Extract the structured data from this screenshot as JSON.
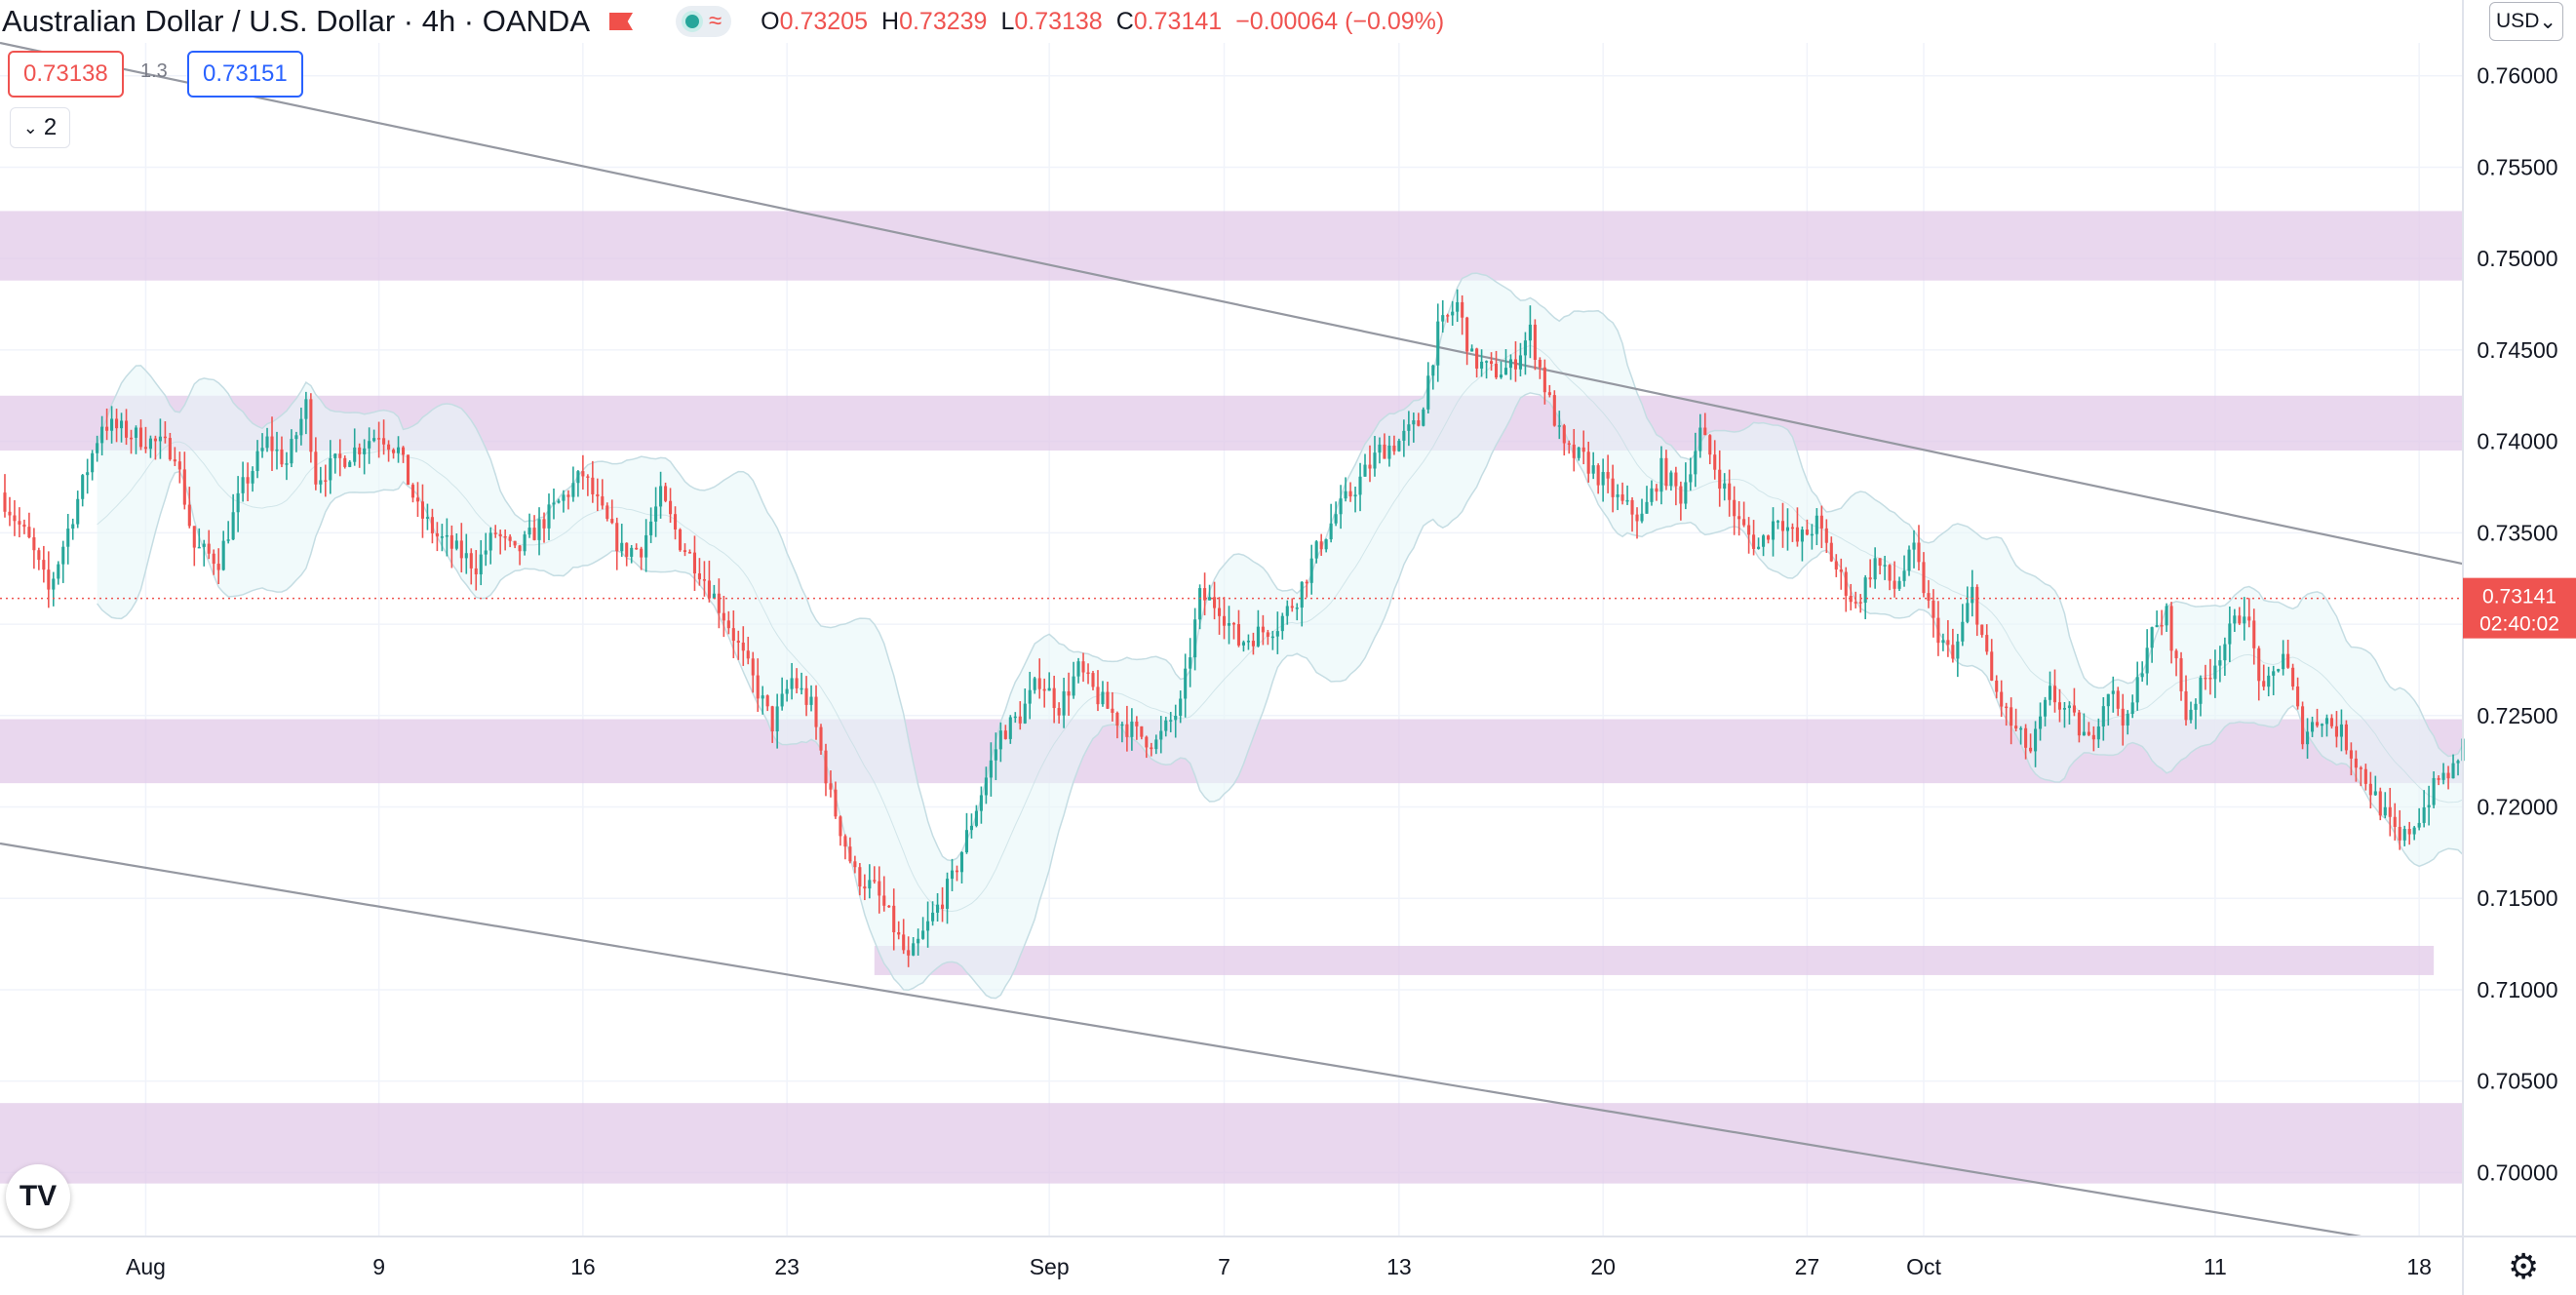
{
  "header": {
    "symbol_title": "Australian Dollar / U.S. Dollar",
    "interval": "4h",
    "exchange": "OANDA",
    "ohlc": {
      "open_label": "O",
      "open": "0.73205",
      "high_label": "H",
      "high": "0.73239",
      "low_label": "L",
      "low": "0.73138",
      "close_label": "C",
      "close": "0.73141",
      "change": "−0.00064 (−0.09%)"
    },
    "colors": {
      "flag": "#f0504a",
      "status_dot": "#26a69a",
      "negative": "#ef5350"
    },
    "icons": [
      "flag-icon",
      "status-dot-icon",
      "indicator-wave-icon"
    ]
  },
  "quote": {
    "sell": "0.73138",
    "spread": "1.3",
    "buy": "0.73151"
  },
  "layers_button": {
    "icon": "chevron-down-icon",
    "count": "2"
  },
  "currency_button": "USD",
  "price_badge": {
    "price": "0.73141",
    "countdown": "02:40:02",
    "color": "#ef5350"
  },
  "footer": {
    "logo": "TV",
    "logo_icon": "tradingview-logo-icon",
    "settings_icon": "gear-icon"
  },
  "chart_data": {
    "type": "candlestick",
    "timeframe": "4h",
    "y_ticks": [
      "0.76000",
      "0.75500",
      "0.75000",
      "0.74500",
      "0.74000",
      "0.73500",
      "0.73000",
      "0.72500",
      "0.72000",
      "0.71500",
      "0.71000",
      "0.70500",
      "0.70000"
    ],
    "x_ticks": [
      "Aug",
      "9",
      "16",
      "23",
      "Sep",
      "7",
      "13",
      "20",
      "27",
      "Oct",
      "11",
      "18"
    ],
    "ylim": [
      0.6965,
      0.7618
    ],
    "x_range": [
      "2021-07-27T00:00",
      "2021-10-19T12:00"
    ],
    "x_tick_dates": [
      "2021-08-01",
      "2021-08-09",
      "2021-08-16",
      "2021-08-23",
      "2021-09-01",
      "2021-09-07",
      "2021-09-13",
      "2021-09-20",
      "2021-09-27",
      "2021-10-01",
      "2021-10-11",
      "2021-10-18"
    ],
    "last_price": 0.73141,
    "colors": {
      "up": "#26a69a",
      "down": "#ef5350",
      "zone": "#e1c8e8",
      "channel": "#9598a1",
      "bands_fill": "#e8f6f8",
      "bands_line": "#c5dde3",
      "grid": "#f0f3fa"
    },
    "price_path": [
      [
        "2021-07-27T00:00",
        0.7372
      ],
      [
        "2021-07-28T00:00",
        0.7345
      ],
      [
        "2021-07-28T16:00",
        0.7318
      ],
      [
        "2021-07-29T12:00",
        0.736
      ],
      [
        "2021-07-30T12:00",
        0.741
      ],
      [
        "2021-08-02T00:00",
        0.7395
      ],
      [
        "2021-08-02T16:00",
        0.7342
      ],
      [
        "2021-08-03T12:00",
        0.7335
      ],
      [
        "2021-08-04T08:00",
        0.7375
      ],
      [
        "2021-08-05T04:00",
        0.74
      ],
      [
        "2021-08-05T20:00",
        0.7388
      ],
      [
        "2021-08-06T12:00",
        0.742
      ],
      [
        "2021-08-06T20:00",
        0.738
      ],
      [
        "2021-08-09T00:00",
        0.7405
      ],
      [
        "2021-08-09T16:00",
        0.7395
      ],
      [
        "2021-08-10T08:00",
        0.7362
      ],
      [
        "2021-08-11T00:00",
        0.7348
      ],
      [
        "2021-08-11T16:00",
        0.734
      ],
      [
        "2021-08-12T08:00",
        0.7332
      ],
      [
        "2021-08-13T00:00",
        0.735
      ],
      [
        "2021-08-13T16:00",
        0.7338
      ],
      [
        "2021-08-16T00:00",
        0.7382
      ],
      [
        "2021-08-16T16:00",
        0.736
      ],
      [
        "2021-08-17T08:00",
        0.734
      ],
      [
        "2021-08-18T00:00",
        0.7342
      ],
      [
        "2021-08-18T16:00",
        0.737
      ],
      [
        "2021-08-19T08:00",
        0.7345
      ],
      [
        "2021-08-20T00:00",
        0.733
      ],
      [
        "2021-08-21T00:00",
        0.73
      ],
      [
        "2021-08-22T12:00",
        0.7245
      ],
      [
        "2021-08-23T04:00",
        0.727
      ],
      [
        "2021-08-23T20:00",
        0.7255
      ],
      [
        "2021-08-24T12:00",
        0.7205
      ],
      [
        "2021-08-25T08:00",
        0.7163
      ],
      [
        "2021-08-26T00:00",
        0.7155
      ],
      [
        "2021-08-26T12:00",
        0.714
      ],
      [
        "2021-08-27T04:00",
        0.7115
      ],
      [
        "2021-08-27T20:00",
        0.7135
      ],
      [
        "2021-08-28T16:00",
        0.716
      ],
      [
        "2021-08-29T12:00",
        0.72
      ],
      [
        "2021-08-30T08:00",
        0.724
      ],
      [
        "2021-08-31T00:00",
        0.725
      ],
      [
        "2021-08-31T16:00",
        0.727
      ],
      [
        "2021-09-01T08:00",
        0.7255
      ],
      [
        "2021-09-02T00:00",
        0.7275
      ],
      [
        "2021-09-02T16:00",
        0.726
      ],
      [
        "2021-09-03T08:00",
        0.7248
      ],
      [
        "2021-09-04T00:00",
        0.724
      ],
      [
        "2021-09-04T16:00",
        0.7235
      ],
      [
        "2021-09-05T12:00",
        0.7255
      ],
      [
        "2021-09-06T04:00",
        0.7315
      ],
      [
        "2021-09-06T20:00",
        0.731
      ],
      [
        "2021-09-07T12:00",
        0.729
      ],
      [
        "2021-09-08T04:00",
        0.7295
      ],
      [
        "2021-09-08T20:00",
        0.73
      ],
      [
        "2021-09-09T12:00",
        0.7315
      ],
      [
        "2021-09-10T04:00",
        0.734
      ],
      [
        "2021-09-10T20:00",
        0.736
      ],
      [
        "2021-09-11T12:00",
        0.7375
      ],
      [
        "2021-09-12T08:00",
        0.7395
      ],
      [
        "2021-09-13T00:00",
        0.74
      ],
      [
        "2021-09-13T16:00",
        0.741
      ],
      [
        "2021-09-14T08:00",
        0.746
      ],
      [
        "2021-09-15T00:00",
        0.7475
      ],
      [
        "2021-09-15T12:00",
        0.7445
      ],
      [
        "2021-09-16T04:00",
        0.7438
      ],
      [
        "2021-09-16T20:00",
        0.744
      ],
      [
        "2021-09-17T12:00",
        0.746
      ],
      [
        "2021-09-18T00:00",
        0.743
      ],
      [
        "2021-09-18T16:00",
        0.7395
      ],
      [
        "2021-09-19T08:00",
        0.739
      ],
      [
        "2021-09-20T00:00",
        0.7378
      ],
      [
        "2021-09-20T16:00",
        0.7365
      ],
      [
        "2021-09-21T08:00",
        0.7358
      ],
      [
        "2021-09-22T00:00",
        0.7385
      ],
      [
        "2021-09-22T16:00",
        0.737
      ],
      [
        "2021-09-23T08:00",
        0.7405
      ],
      [
        "2021-09-24T00:00",
        0.738
      ],
      [
        "2021-09-24T16:00",
        0.7355
      ],
      [
        "2021-09-25T08:00",
        0.7342
      ],
      [
        "2021-09-26T00:00",
        0.736
      ],
      [
        "2021-09-26T16:00",
        0.7345
      ],
      [
        "2021-09-27T08:00",
        0.7355
      ],
      [
        "2021-09-28T00:00",
        0.733
      ],
      [
        "2021-09-28T16:00",
        0.731
      ],
      [
        "2021-09-29T08:00",
        0.7335
      ],
      [
        "2021-09-30T00:00",
        0.732
      ],
      [
        "2021-09-30T16:00",
        0.734
      ],
      [
        "2021-10-01T08:00",
        0.73
      ],
      [
        "2021-10-02T00:00",
        0.728
      ],
      [
        "2021-10-02T16:00",
        0.7318
      ],
      [
        "2021-10-03T08:00",
        0.7268
      ],
      [
        "2021-10-04T00:00",
        0.7245
      ],
      [
        "2021-10-04T16:00",
        0.723
      ],
      [
        "2021-10-05T08:00",
        0.7262
      ],
      [
        "2021-10-06T00:00",
        0.725
      ],
      [
        "2021-10-06T16:00",
        0.7235
      ],
      [
        "2021-10-07T08:00",
        0.7265
      ],
      [
        "2021-10-08T00:00",
        0.7245
      ],
      [
        "2021-10-08T16:00",
        0.729
      ],
      [
        "2021-10-09T08:00",
        0.7305
      ],
      [
        "2021-10-10T00:00",
        0.725
      ],
      [
        "2021-10-10T16:00",
        0.727
      ],
      [
        "2021-10-11T08:00",
        0.729
      ],
      [
        "2021-10-12T00:00",
        0.731
      ],
      [
        "2021-10-12T16:00",
        0.726
      ],
      [
        "2021-10-13T08:00",
        0.7285
      ],
      [
        "2021-10-14T00:00",
        0.724
      ],
      [
        "2021-10-14T16:00",
        0.725
      ],
      [
        "2021-10-15T08:00",
        0.724
      ],
      [
        "2021-10-16T00:00",
        0.722
      ],
      [
        "2021-10-16T16:00",
        0.72
      ],
      [
        "2021-10-17T08:00",
        0.718
      ],
      [
        "2021-10-18T00:00",
        0.7195
      ],
      [
        "2021-10-18T16:00",
        0.7215
      ],
      [
        "2021-10-19T08:00",
        0.7222
      ],
      [
        "2021-10-19T12:00",
        0.724
      ]
    ],
    "zones": [
      {
        "from": 0.7488,
        "to": 0.7526
      },
      {
        "from": 0.7395,
        "to": 0.7425
      },
      {
        "from": 0.7213,
        "to": 0.7248
      },
      {
        "from": 0.7108,
        "to": 0.7124,
        "x_start": "2021-08-26T00:00",
        "x_end": "2021-10-18T12:00"
      },
      {
        "from": 0.6994,
        "to": 0.7038
      }
    ],
    "trend_lines": [
      {
        "from": [
          "2021-07-27T00:00",
          0.7618
        ],
        "to": [
          "2021-10-19T12:00",
          0.7333
        ]
      },
      {
        "from": [
          "2021-07-27T00:00",
          0.718
        ],
        "to": [
          "2021-10-16T00:00",
          0.6965
        ]
      }
    ]
  }
}
